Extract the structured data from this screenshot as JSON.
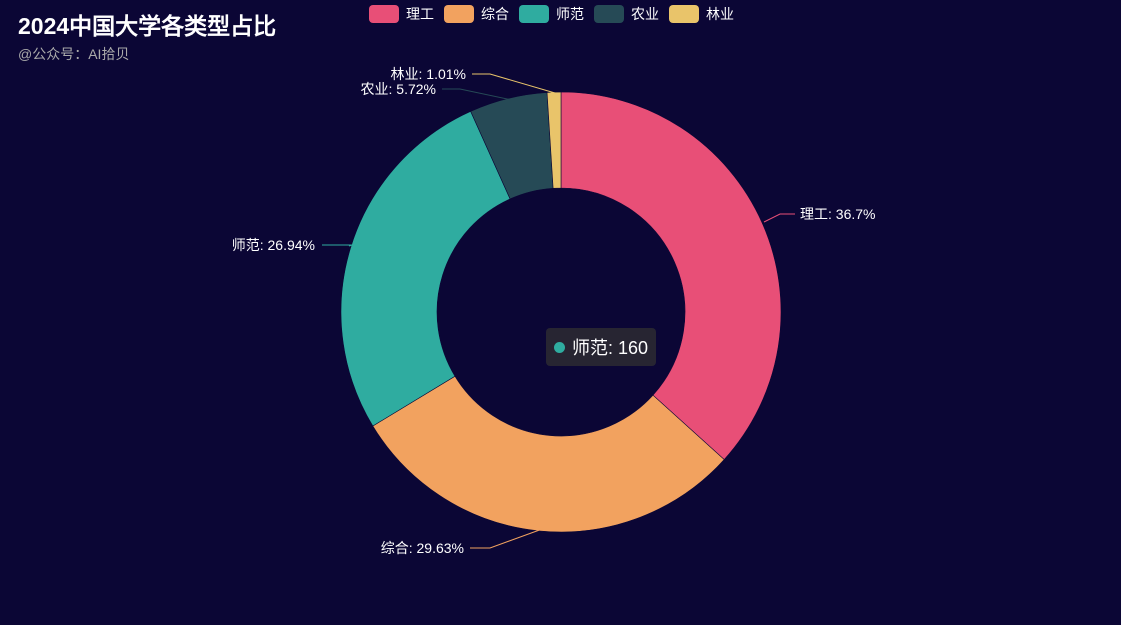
{
  "title": "2024中国大学各类型占比",
  "subtitle": "@公众号：AI拾贝",
  "legend": [
    {
      "label": "理工",
      "color": "#e84f77"
    },
    {
      "label": "综合",
      "color": "#f2a25f"
    },
    {
      "label": "师范",
      "color": "#2faca0"
    },
    {
      "label": "农业",
      "color": "#264a56"
    },
    {
      "label": "林业",
      "color": "#e9c46a"
    }
  ],
  "tooltip": {
    "text": "师范: 160",
    "color": "#2faca0"
  },
  "chart_data": {
    "type": "pie",
    "donut": true,
    "title": "2024中国大学各类型占比",
    "subtitle": "@公众号：AI拾贝",
    "legend_position": "top-center",
    "slices": [
      {
        "name": "理工",
        "value": 218,
        "percent_label": "36.7%",
        "label": "理工: 36.7%",
        "color": "#e84f77"
      },
      {
        "name": "综合",
        "value": 176,
        "percent_label": "29.63%",
        "label": "综合: 29.63%",
        "color": "#f2a25f"
      },
      {
        "name": "师范",
        "value": 160,
        "percent_label": "26.94%",
        "label": "师范: 26.94%",
        "color": "#2faca0"
      },
      {
        "name": "农业",
        "value": 34,
        "percent_label": "5.72%",
        "label": "农业: 5.72%",
        "color": "#264a56"
      },
      {
        "name": "林业",
        "value": 6,
        "percent_label": "1.01%",
        "label": "林业: 1.01%",
        "color": "#e9c46a"
      }
    ]
  }
}
